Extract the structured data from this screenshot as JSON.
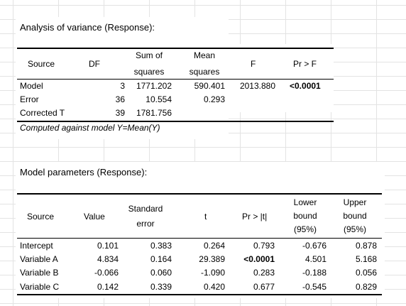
{
  "anova": {
    "title": "Analysis of variance (Response):",
    "headers": {
      "source": "Source",
      "df": "DF",
      "ss_1": "Sum of",
      "ss_2": "squares",
      "ms_1": "Mean",
      "ms_2": "squares",
      "f": "F",
      "p": "Pr > F"
    },
    "rows": [
      {
        "source": "Model",
        "df": "3",
        "ss": "1771.202",
        "ms": "590.401",
        "f": "2013.880",
        "p": "<0.0001"
      },
      {
        "source": "Error",
        "df": "36",
        "ss": "10.554",
        "ms": "0.293",
        "f": "",
        "p": ""
      },
      {
        "source": "Corrected T",
        "df": "39",
        "ss": "1781.756",
        "ms": "",
        "f": "",
        "p": ""
      }
    ],
    "note": "Computed against model Y=Mean(Y)"
  },
  "params": {
    "title": "Model parameters (Response):",
    "headers": {
      "source": "Source",
      "value": "Value",
      "se_1": "Standard",
      "se_2": "error",
      "t": "t",
      "p": "Pr > |t|",
      "lb_1": "Lower",
      "lb_2": "bound",
      "lb_3": "(95%)",
      "ub_1": "Upper",
      "ub_2": "bound",
      "ub_3": "(95%)"
    },
    "rows": [
      {
        "source": "Intercept",
        "value": "0.101",
        "se": "0.383",
        "t": "0.264",
        "p": "0.793",
        "lb": "-0.676",
        "ub": "0.878"
      },
      {
        "source": "Variable A",
        "value": "4.834",
        "se": "0.164",
        "t": "29.389",
        "p": "<0.0001",
        "lb": "4.501",
        "ub": "5.168"
      },
      {
        "source": "Variable B",
        "value": "-0.066",
        "se": "0.060",
        "t": "-1.090",
        "p": "0.283",
        "lb": "-0.188",
        "ub": "0.056"
      },
      {
        "source": "Variable C",
        "value": "0.142",
        "se": "0.339",
        "t": "0.420",
        "p": "0.677",
        "lb": "-0.545",
        "ub": "0.829"
      }
    ]
  }
}
